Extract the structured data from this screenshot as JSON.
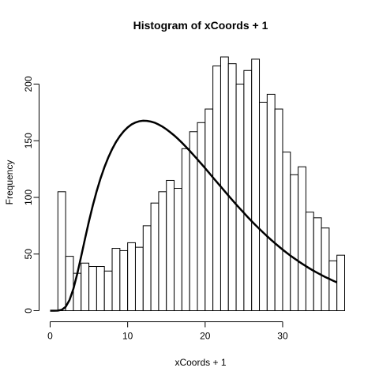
{
  "chart_data": {
    "type": "bar",
    "title": "Histogram of xCoords + 1",
    "xlabel": "xCoords + 1",
    "ylabel": "Frequency",
    "bin_width": 1,
    "bins": [
      {
        "start": 1,
        "end": 2,
        "count": 105
      },
      {
        "start": 2,
        "end": 3,
        "count": 48
      },
      {
        "start": 3,
        "end": 4,
        "count": 33
      },
      {
        "start": 4,
        "end": 5,
        "count": 42
      },
      {
        "start": 5,
        "end": 6,
        "count": 39
      },
      {
        "start": 6,
        "end": 7,
        "count": 39
      },
      {
        "start": 7,
        "end": 8,
        "count": 35
      },
      {
        "start": 8,
        "end": 9,
        "count": 55
      },
      {
        "start": 9,
        "end": 10,
        "count": 53
      },
      {
        "start": 10,
        "end": 11,
        "count": 60
      },
      {
        "start": 11,
        "end": 12,
        "count": 56
      },
      {
        "start": 12,
        "end": 13,
        "count": 75
      },
      {
        "start": 13,
        "end": 14,
        "count": 95
      },
      {
        "start": 14,
        "end": 15,
        "count": 105
      },
      {
        "start": 15,
        "end": 16,
        "count": 115
      },
      {
        "start": 16,
        "end": 17,
        "count": 108
      },
      {
        "start": 17,
        "end": 18,
        "count": 143
      },
      {
        "start": 18,
        "end": 19,
        "count": 158
      },
      {
        "start": 19,
        "end": 20,
        "count": 166
      },
      {
        "start": 20,
        "end": 21,
        "count": 178
      },
      {
        "start": 21,
        "end": 22,
        "count": 216
      },
      {
        "start": 22,
        "end": 23,
        "count": 224
      },
      {
        "start": 23,
        "end": 24,
        "count": 218
      },
      {
        "start": 24,
        "end": 25,
        "count": 200
      },
      {
        "start": 25,
        "end": 26,
        "count": 212
      },
      {
        "start": 26,
        "end": 27,
        "count": 222
      },
      {
        "start": 27,
        "end": 28,
        "count": 184
      },
      {
        "start": 28,
        "end": 29,
        "count": 191
      },
      {
        "start": 29,
        "end": 30,
        "count": 178
      },
      {
        "start": 30,
        "end": 31,
        "count": 140
      },
      {
        "start": 31,
        "end": 32,
        "count": 120
      },
      {
        "start": 32,
        "end": 33,
        "count": 127
      },
      {
        "start": 33,
        "end": 34,
        "count": 87
      },
      {
        "start": 34,
        "end": 35,
        "count": 82
      },
      {
        "start": 35,
        "end": 36,
        "count": 73
      },
      {
        "start": 36,
        "end": 37,
        "count": 44
      },
      {
        "start": 37,
        "end": 38,
        "count": 49
      }
    ],
    "curve": {
      "x": [
        0,
        0.5,
        1,
        1.5,
        2,
        2.5,
        3,
        3.5,
        4,
        4.5,
        5,
        5.5,
        6,
        6.5,
        7,
        7.5,
        8,
        8.5,
        9,
        9.5,
        10,
        10.5,
        11,
        11.5,
        12,
        12.5,
        13,
        13.5,
        14,
        14.5,
        15,
        15.5,
        16,
        16.5,
        17,
        17.5,
        18,
        18.5,
        19,
        19.5,
        20,
        20.5,
        21,
        21.5,
        22,
        22.5,
        23,
        23.5,
        24,
        24.5,
        25,
        25.5,
        26,
        26.5,
        27,
        27.5,
        28,
        28.5,
        29,
        29.5,
        30,
        30.5,
        31,
        31.5,
        32,
        32.5,
        33,
        33.5,
        34,
        34.5,
        35,
        35.5,
        36,
        36.5,
        37
      ],
      "y": [
        0,
        0,
        0.1,
        0.8,
        3.4,
        9.4,
        19.3,
        32.6,
        47.8,
        63.5,
        78.7,
        92.7,
        105.4,
        116.7,
        126.6,
        135.2,
        142.6,
        148.9,
        154.1,
        158.4,
        161.8,
        164.4,
        166.1,
        167.2,
        167.7,
        167.5,
        166.9,
        165.9,
        164.3,
        162.4,
        160.1,
        157.5,
        154.7,
        151.6,
        148.3,
        144.8,
        141.2,
        137.4,
        133.6,
        129.7,
        125.7,
        121.7,
        117.6,
        113.6,
        109.6,
        105.6,
        101.6,
        97.7,
        93.8,
        90.0,
        86.3,
        82.6,
        79.0,
        75.5,
        72.2,
        68.9,
        65.7,
        62.6,
        59.6,
        56.7,
        53.9,
        51.2,
        48.6,
        46.2,
        43.8,
        41.5,
        39.3,
        37.2,
        35.2,
        33.3,
        31.5,
        29.7,
        28.1,
        26.5,
        25.0
      ]
    },
    "xlim": [
      0,
      38
    ],
    "ylim": [
      0,
      224
    ],
    "xticks": [
      0,
      10,
      20,
      30
    ],
    "yticks": [
      0,
      50,
      100,
      150,
      200
    ],
    "grid": false,
    "legend": "none"
  }
}
